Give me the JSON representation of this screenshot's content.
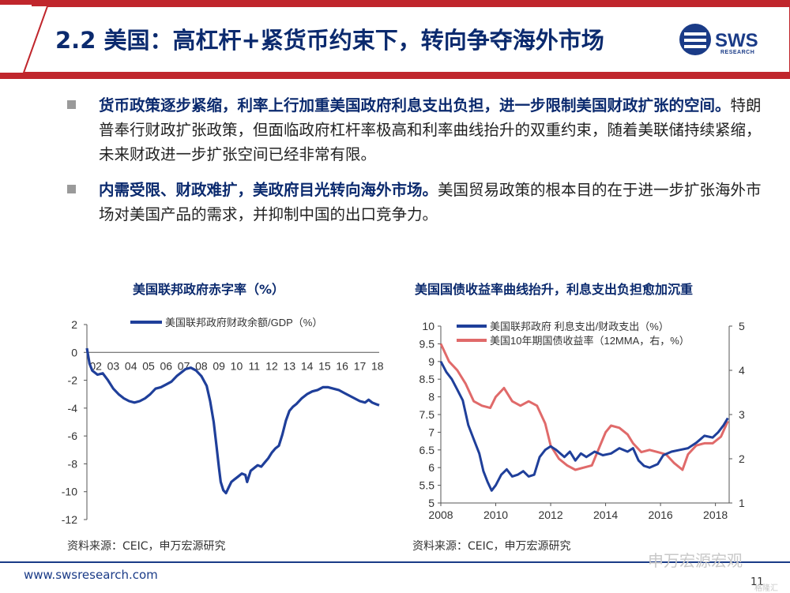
{
  "header": {
    "title": "2.2 美国：高杠杆+紧货币约束下，转向争夺海外市场",
    "logo_text": "SWS",
    "logo_sub": "RESEARCH"
  },
  "bullets": [
    {
      "bold": "货币政策逐步紧缩，利率上行加重美国政府利息支出负担，进一步限制美国财政扩张的空间。",
      "text": "特朗普奉行财政扩张政策，但面临政府杠杆率极高和利率曲线抬升的双重约束，随着美联储持续紧缩，未来财政进一步扩张空间已经非常有限。"
    },
    {
      "bold": "内需受限、财政难扩，美政府目光转向海外市场。",
      "text": "美国贸易政策的根本目的在于进一步扩张海外市场对美国产品的需求，并抑制中国的出口竞争力。"
    }
  ],
  "colors": {
    "navy": "#0b2a6e",
    "line_blue": "#1f3f9a",
    "line_red": "#e06a6a",
    "header_red": "#c0262c"
  },
  "chart_data": [
    {
      "type": "line",
      "title": "美国联邦政府赤字率（%）",
      "legend": [
        "美国联邦政府财政余额/GDP（%）"
      ],
      "x_ticks": [
        "02",
        "03",
        "04",
        "05",
        "06",
        "07",
        "08",
        "09",
        "10",
        "11",
        "12",
        "13",
        "14",
        "15",
        "16",
        "17",
        "18"
      ],
      "y_ticks": [
        "2",
        "0",
        "-2",
        "-4",
        "-6",
        "-8",
        "-10",
        "-12"
      ],
      "ylim": [
        -12,
        2
      ],
      "xlim": [
        2002.0,
        2018.6
      ],
      "series": [
        {
          "name": "美国联邦政府财政余额/GDP（%）",
          "points": [
            [
              2002.0,
              0.3
            ],
            [
              2002.15,
              -0.8
            ],
            [
              2002.3,
              -1.3
            ],
            [
              2002.6,
              -1.6
            ],
            [
              2002.9,
              -1.5
            ],
            [
              2003.2,
              -2.0
            ],
            [
              2003.5,
              -2.6
            ],
            [
              2003.8,
              -3.0
            ],
            [
              2004.1,
              -3.3
            ],
            [
              2004.4,
              -3.5
            ],
            [
              2004.7,
              -3.6
            ],
            [
              2005.0,
              -3.5
            ],
            [
              2005.3,
              -3.3
            ],
            [
              2005.6,
              -3.0
            ],
            [
              2005.9,
              -2.6
            ],
            [
              2006.2,
              -2.5
            ],
            [
              2006.5,
              -2.3
            ],
            [
              2006.8,
              -2.1
            ],
            [
              2007.1,
              -1.7
            ],
            [
              2007.4,
              -1.4
            ],
            [
              2007.6,
              -1.2
            ],
            [
              2007.9,
              -1.1
            ],
            [
              2008.2,
              -1.3
            ],
            [
              2008.5,
              -1.7
            ],
            [
              2008.8,
              -2.4
            ],
            [
              2009.0,
              -3.5
            ],
            [
              2009.2,
              -5.0
            ],
            [
              2009.35,
              -6.6
            ],
            [
              2009.5,
              -8.3
            ],
            [
              2009.6,
              -9.3
            ],
            [
              2009.75,
              -9.9
            ],
            [
              2009.9,
              -10.1
            ],
            [
              2010.05,
              -9.7
            ],
            [
              2010.2,
              -9.3
            ],
            [
              2010.4,
              -9.1
            ],
            [
              2010.6,
              -8.9
            ],
            [
              2010.8,
              -8.7
            ],
            [
              2011.0,
              -8.8
            ],
            [
              2011.1,
              -9.3
            ],
            [
              2011.3,
              -8.5
            ],
            [
              2011.5,
              -8.3
            ],
            [
              2011.7,
              -8.1
            ],
            [
              2011.9,
              -8.2
            ],
            [
              2012.1,
              -7.9
            ],
            [
              2012.3,
              -7.6
            ],
            [
              2012.5,
              -7.2
            ],
            [
              2012.7,
              -6.9
            ],
            [
              2012.9,
              -6.7
            ],
            [
              2013.1,
              -5.9
            ],
            [
              2013.3,
              -4.9
            ],
            [
              2013.5,
              -4.2
            ],
            [
              2013.7,
              -3.9
            ],
            [
              2013.9,
              -3.7
            ],
            [
              2014.2,
              -3.3
            ],
            [
              2014.5,
              -3.0
            ],
            [
              2014.8,
              -2.8
            ],
            [
              2015.1,
              -2.7
            ],
            [
              2015.4,
              -2.5
            ],
            [
              2015.7,
              -2.5
            ],
            [
              2016.0,
              -2.6
            ],
            [
              2016.3,
              -2.7
            ],
            [
              2016.6,
              -2.9
            ],
            [
              2016.9,
              -3.1
            ],
            [
              2017.2,
              -3.3
            ],
            [
              2017.5,
              -3.5
            ],
            [
              2017.8,
              -3.6
            ],
            [
              2018.0,
              -3.4
            ],
            [
              2018.2,
              -3.6
            ],
            [
              2018.4,
              -3.7
            ],
            [
              2018.6,
              -3.8
            ]
          ]
        }
      ]
    },
    {
      "type": "line",
      "title": "美国国债收益率曲线抬升，利息支出负担愈加沉重",
      "legend": [
        "美国联邦政府 利息支出/财政支出（%）",
        "美国10年期国债收益率（12MMA，右，%）"
      ],
      "x_ticks": [
        "2008",
        "2010",
        "2012",
        "2014",
        "2016",
        "2018"
      ],
      "y_left_ticks": [
        "10",
        "9.5",
        "9",
        "8.5",
        "8",
        "7.5",
        "7",
        "6.5",
        "6",
        "5.5",
        "5"
      ],
      "y_right_ticks": [
        "5",
        "4",
        "3",
        "2",
        "1"
      ],
      "ylim_left": [
        5,
        10
      ],
      "ylim_right": [
        1,
        5
      ],
      "xlim": [
        2008.0,
        2018.5
      ],
      "series": [
        {
          "name": "美国联邦政府 利息支出/财政支出（%）",
          "axis": "left",
          "points": [
            [
              2008.0,
              9.0
            ],
            [
              2008.2,
              8.7
            ],
            [
              2008.4,
              8.5
            ],
            [
              2008.6,
              8.2
            ],
            [
              2008.8,
              7.9
            ],
            [
              2009.0,
              7.2
            ],
            [
              2009.2,
              6.8
            ],
            [
              2009.4,
              6.4
            ],
            [
              2009.55,
              5.9
            ],
            [
              2009.7,
              5.6
            ],
            [
              2009.85,
              5.35
            ],
            [
              2010.0,
              5.5
            ],
            [
              2010.2,
              5.8
            ],
            [
              2010.4,
              5.95
            ],
            [
              2010.6,
              5.75
            ],
            [
              2010.8,
              5.8
            ],
            [
              2011.0,
              5.9
            ],
            [
              2011.2,
              5.75
            ],
            [
              2011.4,
              5.8
            ],
            [
              2011.6,
              6.3
            ],
            [
              2011.8,
              6.5
            ],
            [
              2012.0,
              6.6
            ],
            [
              2012.2,
              6.5
            ],
            [
              2012.5,
              6.3
            ],
            [
              2012.7,
              6.45
            ],
            [
              2012.9,
              6.2
            ],
            [
              2013.1,
              6.4
            ],
            [
              2013.3,
              6.3
            ],
            [
              2013.6,
              6.45
            ],
            [
              2013.9,
              6.35
            ],
            [
              2014.2,
              6.4
            ],
            [
              2014.5,
              6.55
            ],
            [
              2014.8,
              6.45
            ],
            [
              2015.0,
              6.55
            ],
            [
              2015.2,
              6.2
            ],
            [
              2015.4,
              6.05
            ],
            [
              2015.6,
              6.0
            ],
            [
              2015.9,
              6.1
            ],
            [
              2016.1,
              6.35
            ],
            [
              2016.4,
              6.45
            ],
            [
              2016.7,
              6.5
            ],
            [
              2017.0,
              6.55
            ],
            [
              2017.3,
              6.7
            ],
            [
              2017.6,
              6.9
            ],
            [
              2017.9,
              6.85
            ],
            [
              2018.1,
              7.0
            ],
            [
              2018.3,
              7.2
            ],
            [
              2018.45,
              7.4
            ]
          ]
        },
        {
          "name": "美国10年期国债收益率（12MMA，右，%）",
          "axis": "right",
          "points": [
            [
              2008.0,
              4.6
            ],
            [
              2008.3,
              4.2
            ],
            [
              2008.6,
              4.0
            ],
            [
              2008.9,
              3.7
            ],
            [
              2009.2,
              3.3
            ],
            [
              2009.5,
              3.2
            ],
            [
              2009.8,
              3.15
            ],
            [
              2010.0,
              3.4
            ],
            [
              2010.3,
              3.6
            ],
            [
              2010.6,
              3.3
            ],
            [
              2010.9,
              3.2
            ],
            [
              2011.2,
              3.3
            ],
            [
              2011.5,
              3.2
            ],
            [
              2011.8,
              2.8
            ],
            [
              2012.0,
              2.3
            ],
            [
              2012.3,
              2.0
            ],
            [
              2012.6,
              1.85
            ],
            [
              2012.9,
              1.75
            ],
            [
              2013.2,
              1.8
            ],
            [
              2013.5,
              1.85
            ],
            [
              2013.8,
              2.3
            ],
            [
              2014.0,
              2.6
            ],
            [
              2014.2,
              2.75
            ],
            [
              2014.5,
              2.7
            ],
            [
              2014.8,
              2.55
            ],
            [
              2015.0,
              2.35
            ],
            [
              2015.3,
              2.15
            ],
            [
              2015.6,
              2.2
            ],
            [
              2015.9,
              2.15
            ],
            [
              2016.2,
              2.1
            ],
            [
              2016.5,
              1.9
            ],
            [
              2016.8,
              1.75
            ],
            [
              2017.0,
              2.1
            ],
            [
              2017.3,
              2.3
            ],
            [
              2017.6,
              2.35
            ],
            [
              2017.9,
              2.35
            ],
            [
              2018.2,
              2.5
            ],
            [
              2018.45,
              2.85
            ]
          ]
        }
      ]
    }
  ],
  "charts_meta": {
    "left_source": "资料来源：CEIC，申万宏源研究",
    "right_source": "资料来源：CEIC，申万宏源研究"
  },
  "footer": {
    "url": "www.swsresearch.com",
    "page": "11",
    "watermark": "申万宏源宏观",
    "watermark2": "格隆汇"
  }
}
